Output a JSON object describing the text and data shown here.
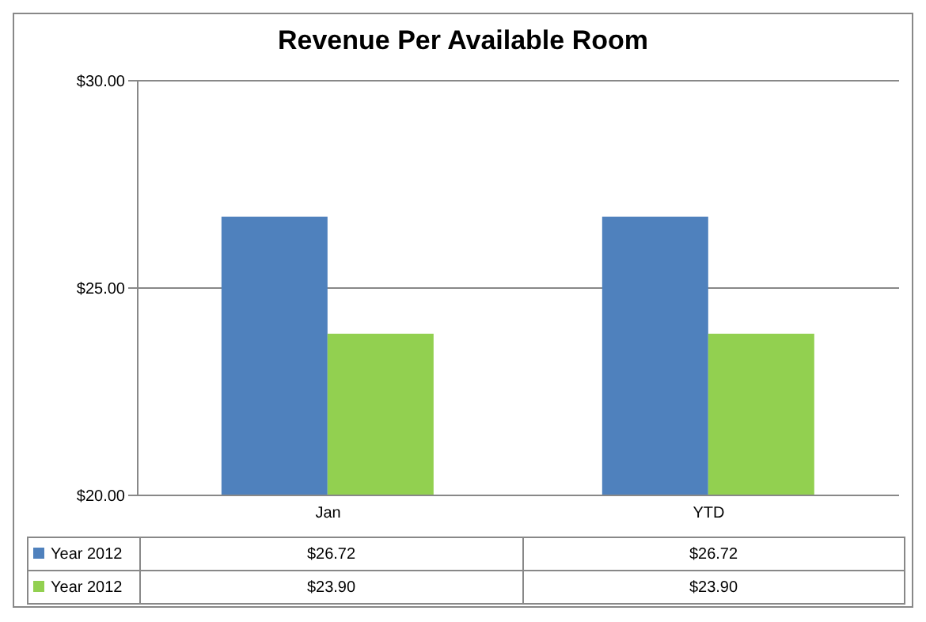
{
  "chart_data": {
    "type": "bar",
    "title": "Revenue Per Available Room",
    "categories": [
      "Jan",
      "YTD"
    ],
    "series": [
      {
        "name": "Year 2012",
        "color": "#4f81bd",
        "values": [
          26.72,
          26.72
        ],
        "value_labels": [
          "$26.72",
          "$26.72"
        ]
      },
      {
        "name": "Year 2012",
        "color": "#92d050",
        "values": [
          23.9,
          23.9
        ],
        "value_labels": [
          "$23.90",
          "$23.90"
        ]
      }
    ],
    "ylim": [
      20,
      30
    ],
    "yticks": [
      {
        "value": 20,
        "label": "$20.00"
      },
      {
        "value": 25,
        "label": "$25.00"
      },
      {
        "value": 30,
        "label": "$30.00"
      }
    ],
    "grid": "y",
    "legend": "bottom"
  }
}
